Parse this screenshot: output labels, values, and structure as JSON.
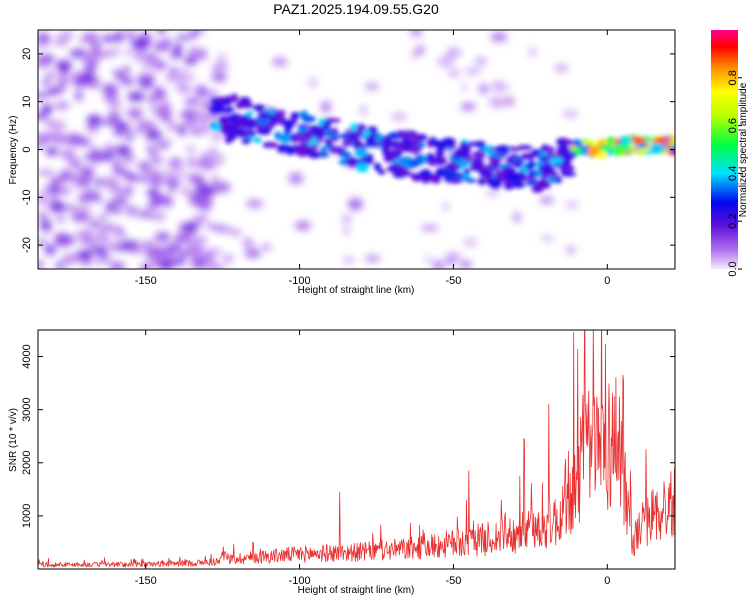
{
  "title": "PAZ1.2025.194.09.55.G20",
  "colors": {
    "snr_line": "#e83030",
    "frame": "#000000"
  },
  "chart_data": [
    {
      "type": "heatmap",
      "name": "spectrogram",
      "xlabel": "Height of straight line (km)",
      "ylabel": "Frequency (Hz)",
      "xlim": [
        -185,
        22
      ],
      "ylim": [
        -25,
        25
      ],
      "x_ticks": [
        -150,
        -100,
        -50,
        0
      ],
      "y_ticks": [
        -20,
        -10,
        0,
        10,
        20
      ],
      "colorbar": {
        "label": "Normalized spectral amplitude",
        "range": [
          0,
          1
        ],
        "ticks": [
          0.0,
          0.2,
          0.4,
          0.6,
          0.8
        ],
        "colormap": "rainbow"
      },
      "signal_track": [
        {
          "x": -125,
          "y": 7
        },
        {
          "x": -110,
          "y": 4
        },
        {
          "x": -95,
          "y": 3
        },
        {
          "x": -80,
          "y": 0
        },
        {
          "x": -65,
          "y": -1
        },
        {
          "x": -50,
          "y": -3
        },
        {
          "x": -35,
          "y": -3
        },
        {
          "x": -20,
          "y": -4
        },
        {
          "x": -10,
          "y": 0
        },
        {
          "x": 0,
          "y": 0.5
        },
        {
          "x": 10,
          "y": 1
        },
        {
          "x": 20,
          "y": 1
        }
      ]
    },
    {
      "type": "line",
      "name": "snr",
      "xlabel": "Height of straight line (km)",
      "ylabel": "SNR (10 * v/v)",
      "xlim": [
        -185,
        22
      ],
      "ylim": [
        0,
        4500
      ],
      "x_ticks": [
        -150,
        -100,
        -50,
        0
      ],
      "y_ticks": [
        1000,
        2000,
        3000,
        4000
      ],
      "envelope": [
        {
          "x": -185,
          "y": 100
        },
        {
          "x": -150,
          "y": 110
        },
        {
          "x": -130,
          "y": 150
        },
        {
          "x": -120,
          "y": 250
        },
        {
          "x": -100,
          "y": 350
        },
        {
          "x": -80,
          "y": 400
        },
        {
          "x": -60,
          "y": 500
        },
        {
          "x": -40,
          "y": 700
        },
        {
          "x": -25,
          "y": 900
        },
        {
          "x": -15,
          "y": 1200
        },
        {
          "x": -12,
          "y": 1500
        },
        {
          "x": -8,
          "y": 2700
        },
        {
          "x": 0,
          "y": 2900
        },
        {
          "x": 4,
          "y": 3100
        },
        {
          "x": 7,
          "y": 1200
        },
        {
          "x": 8,
          "y": 600
        },
        {
          "x": 12,
          "y": 1100
        },
        {
          "x": 22,
          "y": 1600
        }
      ],
      "spikes": [
        {
          "x": -87,
          "y": 1450
        },
        {
          "x": -45,
          "y": 1850
        },
        {
          "x": -27,
          "y": 2450
        },
        {
          "x": -19,
          "y": 3100
        },
        {
          "x": -11,
          "y": 4450
        },
        {
          "x": 5,
          "y": 3650
        }
      ]
    }
  ]
}
